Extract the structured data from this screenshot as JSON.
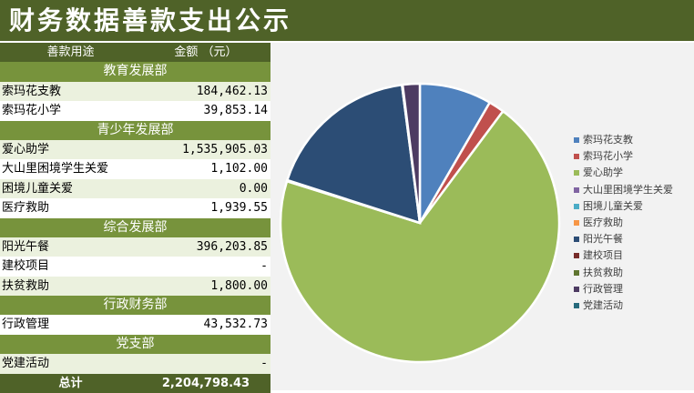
{
  "title": "财务数据善款支出公示",
  "table": {
    "header": {
      "purpose": "善款用途",
      "amount": "金额 （元）"
    },
    "sections": [
      {
        "name": "教育发展部",
        "items": [
          {
            "label": "索玛花支教",
            "amount": "184,462.13"
          },
          {
            "label": "索玛花小学",
            "amount": "39,853.14"
          }
        ]
      },
      {
        "name": "青少年发展部",
        "items": [
          {
            "label": " 爱心助学",
            "amount": "1,535,905.03"
          },
          {
            "label": "大山里困境学生关爱",
            "amount": "1,102.00"
          },
          {
            "label": " 困境儿童关爱",
            "amount": "0.00"
          },
          {
            "label": " 医疗救助",
            "amount": "1,939.55"
          }
        ]
      },
      {
        "name": "综合发展部",
        "items": [
          {
            "label": " 阳光午餐",
            "amount": "396,203.85"
          },
          {
            "label": " 建校项目",
            "amount": "-"
          },
          {
            "label": " 扶贫救助",
            "amount": "1,800.00"
          }
        ]
      },
      {
        "name": "行政财务部",
        "items": [
          {
            "label": " 行政管理",
            "amount": "43,532.73"
          }
        ]
      },
      {
        "name": "党支部",
        "items": [
          {
            "label": " 党建活动",
            "amount": "-"
          }
        ]
      }
    ],
    "total": {
      "label": "总计",
      "amount": "2,204,798.43"
    }
  },
  "chart_data": {
    "type": "pie",
    "categories": [
      "索玛花支教",
      "索玛花小学",
      "爱心助学",
      "大山里困境学生关爱",
      "困境儿童关爱",
      "医疗救助",
      "阳光午餐",
      "建校项目",
      "扶贫救助",
      "行政管理",
      "党建活动"
    ],
    "values": [
      184462.13,
      39853.14,
      1535905.03,
      1102.0,
      0.0,
      1939.55,
      396203.85,
      0,
      1800.0,
      43532.73,
      0
    ],
    "colors": [
      "#4f81bd",
      "#c0504d",
      "#9bbb59",
      "#8064a2",
      "#4bacc6",
      "#f79646",
      "#2c4d75",
      "#772c2a",
      "#5f7530",
      "#4d3b62",
      "#276a7c"
    ],
    "legend_position": "right",
    "title": ""
  }
}
